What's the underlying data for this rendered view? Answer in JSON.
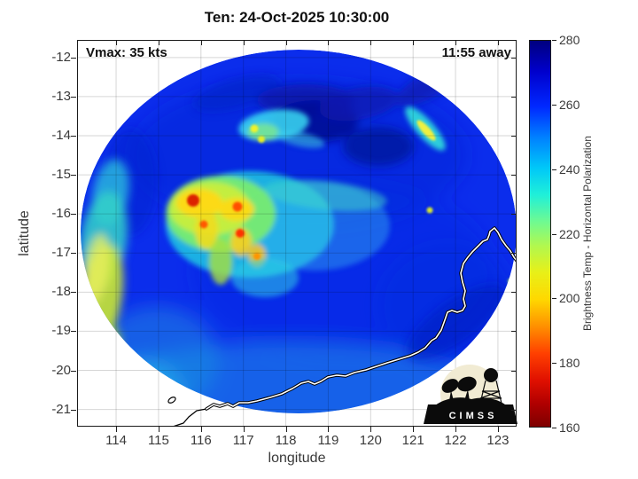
{
  "figure": {
    "title": "Ten: 24-Oct-2025 10:30:00",
    "vmax_label": "Vmax: 35 kts",
    "eta_label": "11:55 away"
  },
  "axes": {
    "xlabel": "longitude",
    "ylabel": "latitude",
    "x_ticks": [
      114,
      115,
      116,
      117,
      118,
      119,
      120,
      121,
      122,
      123
    ],
    "y_ticks": [
      -12,
      -13,
      -14,
      -15,
      -16,
      -17,
      -18,
      -19,
      -20,
      -21
    ],
    "x_range": [
      113.08,
      123.44
    ],
    "y_range": [
      -21.44,
      -11.55
    ]
  },
  "colorbar": {
    "label": "Brightness Temp - Horizontal Polarization",
    "ticks_top_to_bottom": [
      280,
      260,
      240,
      220,
      200,
      180,
      160
    ],
    "range": [
      160,
      280
    ]
  },
  "logo": {
    "text": "CIMSS"
  },
  "chart_data": {
    "type": "heatmap",
    "title": "Ten: 24-Oct-2025 10:30:00",
    "xlabel": "longitude",
    "ylabel": "latitude",
    "xlim": [
      113.1,
      123.4
    ],
    "ylim": [
      -21.4,
      -11.6
    ],
    "grid": true,
    "colorbar": {
      "label": "Brightness Temp - Horizontal Polarization",
      "min": 160,
      "max": 280,
      "tick_step": 20,
      "colormap": "reversed jet: 280 K dark blue -> 240 K cyan -> 220 K green -> 200 K yellow -> 180 K red -> 160 K dark red"
    },
    "storm": {
      "name": "Ten",
      "datetime": "24-Oct-2025 10:30:00",
      "vmax_kts": 35,
      "obs_offset": "11:55 away"
    },
    "background_ocean_tb_k": 262,
    "features": [
      {
        "lon": 115.8,
        "lat": -15.6,
        "tb_k": 168,
        "desc": "strongest convective core (dark red spot)"
      },
      {
        "lon": 116.8,
        "lat": -15.7,
        "tb_k": 178,
        "desc": "convective core"
      },
      {
        "lon": 116.1,
        "lat": -16.2,
        "tb_k": 182,
        "desc": "convective core"
      },
      {
        "lon": 116.9,
        "lat": -16.4,
        "tb_k": 180,
        "desc": "convective core"
      },
      {
        "lon": 117.3,
        "lat": -17.0,
        "tb_k": 195,
        "desc": "convective cell south of cluster"
      },
      {
        "lon": 116.2,
        "lat": -16.0,
        "tb_k": 215,
        "desc": "central dense convective cluster (green/yellow mass)"
      },
      {
        "lon": 117.0,
        "lat": -13.9,
        "tb_k": 228,
        "desc": "cyan patch with small warm spots north of storm"
      },
      {
        "lon": 121.5,
        "lat": -13.5,
        "tb_k": 212,
        "desc": "diagonal convective band near NE swath edge"
      },
      {
        "lon": 114.2,
        "lat": -17.5,
        "tb_k": 205,
        "desc": "yellow-green band along western swath edge"
      },
      {
        "lon": 118.0,
        "lat": -14.1,
        "tb_k": 276,
        "desc": "cold dark-blue patch"
      },
      {
        "lon": 121.5,
        "lat": -17.6,
        "tb_k": 272,
        "desc": "dark-blue streak in SE quadrant"
      }
    ],
    "overlay": "white NW-Australia coastline across lower-right of swath; circular sensor swath edge, white outside"
  }
}
